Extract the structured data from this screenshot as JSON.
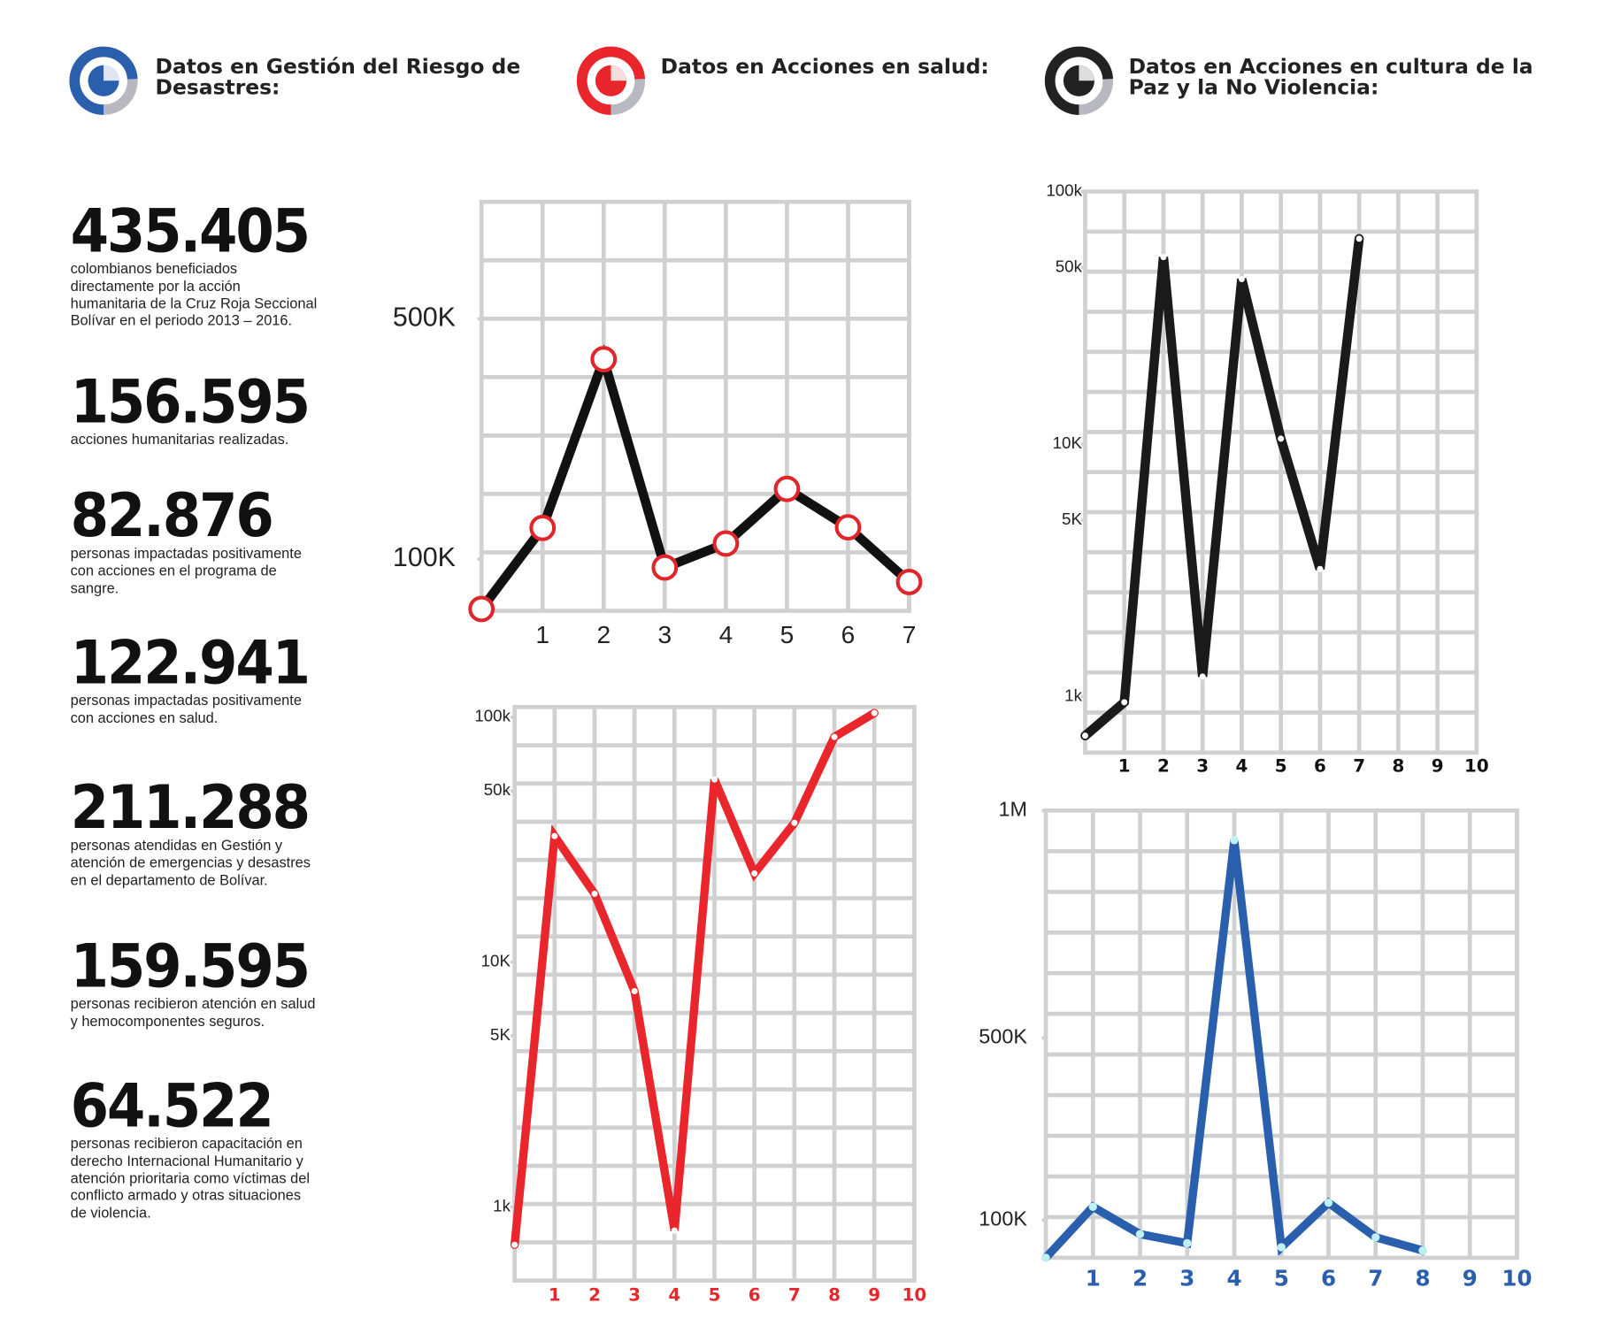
{
  "header": {
    "titles": [
      "Datos en Gestión del Riesgo de Desastres:",
      "Datos en Acciones en salud:",
      "Datos en Acciones en cultura de la Paz y la No Violencia:"
    ]
  },
  "stats": [
    {
      "number": "435.405",
      "text": "colombianos beneficiados directamente por la acción humanitaria de la Cruz Roja Seccional Bolívar en el periodo 2013 – 2016."
    },
    {
      "number": "156.595",
      "text": "acciones humanitarias realizadas."
    },
    {
      "number": "82.876",
      "text": "personas impactadas positivamente con acciones en el programa de sangre."
    },
    {
      "number": "122.941",
      "text": "personas impactadas positivamente con acciones en salud."
    },
    {
      "number": "211.288",
      "text": "personas atendidas en Gestión y atención de emergencias y desastres en el departamento de Bolívar."
    },
    {
      "number": "159.595",
      "text": "personas recibieron atención en salud y hemocomponentes seguros."
    },
    {
      "number": "64.522",
      "text": "personas recibieron capacitación en derecho Internacional Humanitario y atención prioritaria como víctimas del conflicto armado y otras situaciones de violencia."
    }
  ],
  "chart_data": [
    {
      "type": "line",
      "x": [
        0,
        1,
        2,
        3,
        4,
        5,
        6,
        7
      ],
      "series": [
        {
          "color": "#111111",
          "marker_color": "#e0262b",
          "values": [
            17000,
            152000,
            433000,
            86000,
            126000,
            217000,
            153000,
            62000
          ]
        }
      ],
      "xlim": [
        0,
        7
      ],
      "xticks": [
        1,
        2,
        3,
        4,
        5,
        6,
        7
      ],
      "ylim": [
        14000,
        695000
      ],
      "yticks": [
        {
          "value": 500000,
          "label": "500K"
        },
        {
          "value": 100000,
          "label": "100K"
        }
      ],
      "log_scale": false,
      "grid": true
    },
    {
      "type": "line",
      "x": [
        0,
        1,
        2,
        3,
        4,
        5,
        6,
        7,
        8,
        9
      ],
      "series": [
        {
          "color": "#e8262b",
          "marker_color": "#ffffff",
          "values": [
            700,
            32700,
            19000,
            7600,
            800,
            55700,
            23000,
            37000,
            83000,
            104000
          ]
        }
      ],
      "xlim": [
        0,
        10
      ],
      "xticks": [
        1,
        2,
        3,
        4,
        5,
        6,
        7,
        8,
        9,
        10
      ],
      "ylim": [
        500,
        110000
      ],
      "yticks": [
        {
          "value": 100000,
          "label": "100k"
        },
        {
          "value": 50000,
          "label": "50k"
        },
        {
          "value": 10000,
          "label": "10K"
        },
        {
          "value": 5000,
          "label": "5K"
        },
        {
          "value": 1000,
          "label": "1k"
        }
      ],
      "log_scale": true,
      "grid": true
    },
    {
      "type": "line",
      "x": [
        0,
        1,
        2,
        3,
        4,
        5,
        6,
        7
      ],
      "series": [
        {
          "color": "#1a1a1a",
          "marker_color": "#ffffff",
          "values": [
            700,
            950,
            55000,
            1200,
            45000,
            10500,
            3200,
            65000
          ]
        }
      ],
      "xlim": [
        0,
        10
      ],
      "xticks": [
        1,
        2,
        3,
        4,
        5,
        6,
        7,
        8,
        9,
        10
      ],
      "ylim": [
        600,
        100000
      ],
      "yticks": [
        {
          "value": 100000,
          "label": "100k"
        },
        {
          "value": 50000,
          "label": "50k"
        },
        {
          "value": 10000,
          "label": "10K"
        },
        {
          "value": 5000,
          "label": "5K"
        },
        {
          "value": 1000,
          "label": "1k"
        }
      ],
      "log_scale": true,
      "grid": true
    },
    {
      "type": "line",
      "x": [
        0,
        1,
        2,
        3,
        4,
        5,
        6,
        7,
        8
      ],
      "series": [
        {
          "color": "#2a5fae",
          "marker_color": "#bff0f5",
          "values": [
            17000,
            129000,
            69000,
            49000,
            935000,
            40000,
            138000,
            62000,
            33000
          ]
        }
      ],
      "xlim": [
        0,
        10
      ],
      "xticks": [
        1,
        2,
        3,
        4,
        5,
        6,
        7,
        8,
        9,
        10
      ],
      "ylim": [
        17000,
        1000000
      ],
      "yticks": [
        {
          "value": 1000000,
          "label": "1M"
        },
        {
          "value": 500000,
          "label": "500K"
        },
        {
          "value": 100000,
          "label": "100K"
        }
      ],
      "log_scale": false,
      "grid": true
    }
  ]
}
